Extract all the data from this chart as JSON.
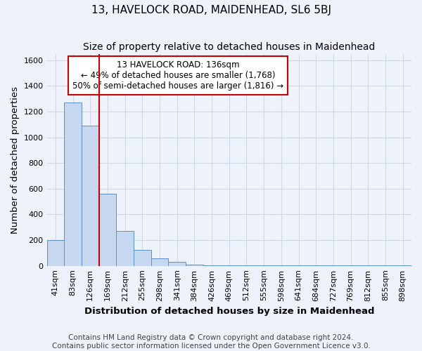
{
  "title": "13, HAVELOCK ROAD, MAIDENHEAD, SL6 5BJ",
  "subtitle": "Size of property relative to detached houses in Maidenhead",
  "xlabel": "Distribution of detached houses by size in Maidenhead",
  "ylabel": "Number of detached properties",
  "footer_line1": "Contains HM Land Registry data © Crown copyright and database right 2024.",
  "footer_line2": "Contains public sector information licensed under the Open Government Licence v3.0.",
  "annotation_line1": "13 HAVELOCK ROAD: 136sqm",
  "annotation_line2": "← 49% of detached houses are smaller (1,768)",
  "annotation_line3": "50% of semi-detached houses are larger (1,816) →",
  "bar_labels": [
    "41sqm",
    "83sqm",
    "126sqm",
    "169sqm",
    "212sqm",
    "255sqm",
    "298sqm",
    "341sqm",
    "384sqm",
    "426sqm",
    "469sqm",
    "512sqm",
    "555sqm",
    "598sqm",
    "641sqm",
    "684sqm",
    "727sqm",
    "769sqm",
    "812sqm",
    "855sqm",
    "898sqm"
  ],
  "bar_values": [
    200,
    1270,
    1090,
    560,
    270,
    125,
    60,
    30,
    10,
    5,
    3,
    2,
    1,
    1,
    1,
    1,
    1,
    1,
    1,
    1,
    1
  ],
  "bar_color": "#c5d8f0",
  "bar_edge_color": "#5b8fd4",
  "red_line_x": 2.5,
  "red_line_color": "#cc0000",
  "ylim": [
    0,
    1650
  ],
  "yticks": [
    0,
    200,
    400,
    600,
    800,
    1000,
    1200,
    1400,
    1600
  ],
  "background_color": "#eef2fa",
  "grid_color": "#d0d8e8",
  "annotation_box_color": "#ffffff",
  "annotation_box_edge": "#cc0000",
  "title_fontsize": 11,
  "subtitle_fontsize": 10,
  "axis_label_fontsize": 9.5,
  "tick_fontsize": 8,
  "annotation_fontsize": 8.5,
  "footer_fontsize": 7.5
}
